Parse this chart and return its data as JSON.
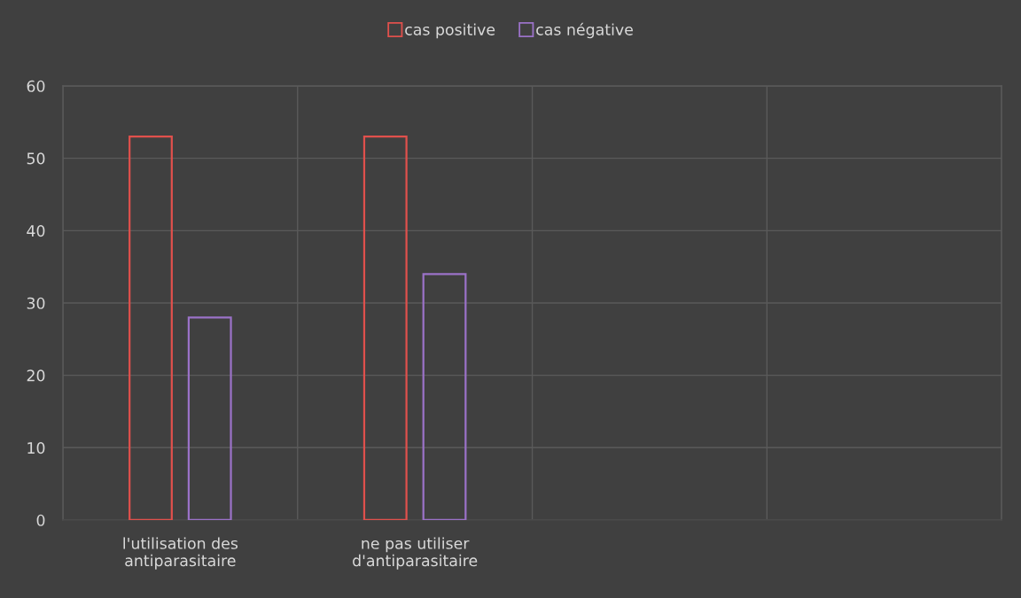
{
  "chart_data": {
    "type": "bar",
    "categories": [
      "l'utilisation des antiparasitaire",
      "ne pas utiliser d'antiparasitaire",
      null,
      null
    ],
    "series": [
      {
        "name": "cas positive",
        "color": "#e0504c",
        "values": [
          53,
          53,
          null,
          null
        ]
      },
      {
        "name": "cas négative",
        "color": "#9b72c8",
        "values": [
          28,
          34,
          null,
          null
        ]
      }
    ],
    "ylim": [
      0,
      60
    ],
    "yticks": [
      0,
      10,
      20,
      30,
      40,
      50,
      60
    ],
    "grid": true,
    "legend": "top"
  }
}
